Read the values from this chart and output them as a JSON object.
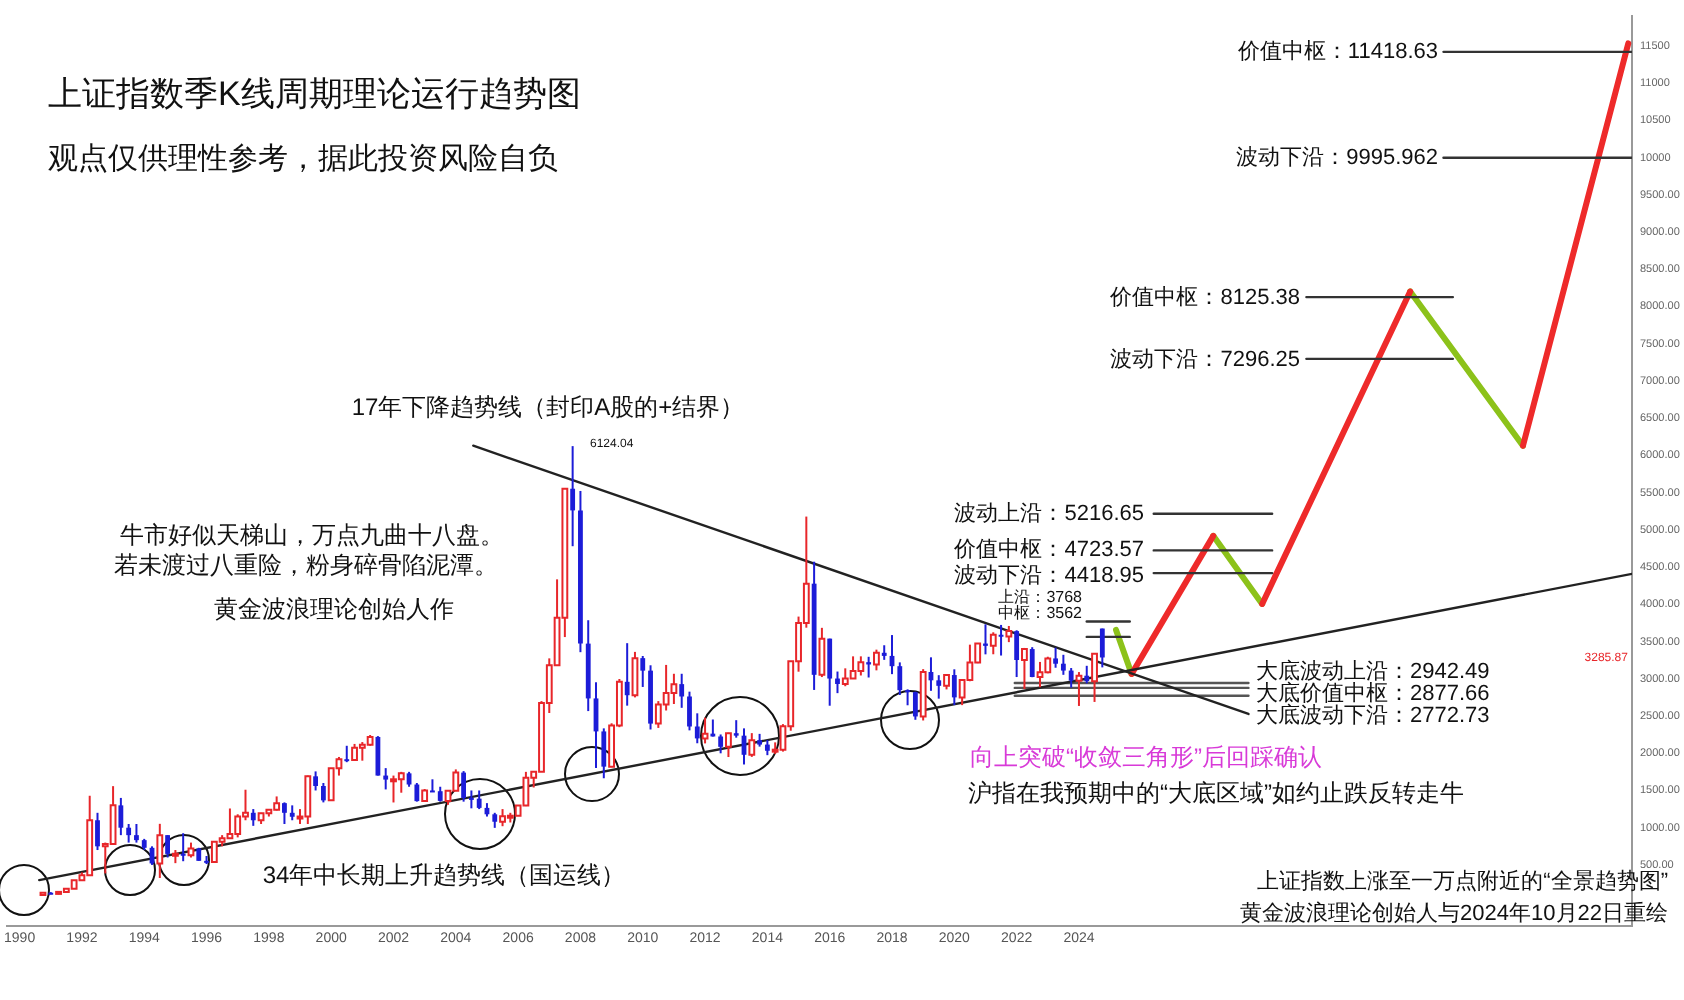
{
  "chart_data": {
    "type": "candlestick",
    "title": "上证指数季K线周期理论运行趋势图",
    "subtitle": "观点仅供理性参考，据此投资风险自负",
    "x": [
      1990.75,
      1991,
      1991.25,
      1991.5,
      1991.75,
      1992,
      1992.25,
      1992.5,
      1992.75,
      1993,
      1993.25,
      1993.5,
      1993.75,
      1994,
      1994.25,
      1994.5,
      1994.75,
      1995,
      1995.25,
      1995.5,
      1995.75,
      1996,
      1996.25,
      1996.5,
      1996.75,
      1997,
      1997.25,
      1997.5,
      1997.75,
      1998,
      1998.25,
      1998.5,
      1998.75,
      1999,
      1999.25,
      1999.5,
      1999.75,
      2000,
      2000.25,
      2000.5,
      2000.75,
      2001,
      2001.25,
      2001.5,
      2001.75,
      2002,
      2002.25,
      2002.5,
      2002.75,
      2003,
      2003.25,
      2003.5,
      2003.75,
      2004,
      2004.25,
      2004.5,
      2004.75,
      2005,
      2005.25,
      2005.5,
      2005.75,
      2006,
      2006.25,
      2006.5,
      2006.75,
      2007,
      2007.25,
      2007.5,
      2007.75,
      2008,
      2008.25,
      2008.5,
      2008.75,
      2009,
      2009.25,
      2009.5,
      2009.75,
      2010,
      2010.25,
      2010.5,
      2010.75,
      2011,
      2011.25,
      2011.5,
      2011.75,
      2012,
      2012.25,
      2012.5,
      2012.75,
      2013,
      2013.25,
      2013.5,
      2013.75,
      2014,
      2014.25,
      2014.5,
      2014.75,
      2015,
      2015.25,
      2015.5,
      2015.75,
      2016,
      2016.25,
      2016.5,
      2016.75,
      2017,
      2017.25,
      2017.5,
      2017.75,
      2018,
      2018.25,
      2018.5,
      2018.75,
      2019,
      2019.25,
      2019.5,
      2019.75,
      2020,
      2020.25,
      2020.5,
      2020.75,
      2021,
      2021.25,
      2021.5,
      2021.75,
      2022,
      2022.25,
      2022.5,
      2022.75,
      2023,
      2023.25,
      2023.5,
      2023.75,
      2024,
      2024.25,
      2024.5,
      2024.75
    ],
    "ohlc": [
      [
        96,
        127,
        95,
        127
      ],
      [
        127,
        135,
        105,
        120
      ],
      [
        120,
        140,
        105,
        138
      ],
      [
        138,
        180,
        135,
        180
      ],
      [
        180,
        293,
        180,
        293
      ],
      [
        293,
        400,
        290,
        360
      ],
      [
        360,
        1429,
        360,
        1100
      ],
      [
        1100,
        1200,
        700,
        750
      ],
      [
        750,
        800,
        386,
        780
      ],
      [
        780,
        1558,
        770,
        1300
      ],
      [
        1300,
        1400,
        900,
        1000
      ],
      [
        1000,
        1050,
        800,
        900
      ],
      [
        900,
        1050,
        800,
        833
      ],
      [
        833,
        850,
        700,
        730
      ],
      [
        730,
        750,
        500,
        520
      ],
      [
        520,
        1052,
        325,
        900
      ],
      [
        900,
        900,
        600,
        648
      ],
      [
        648,
        700,
        524,
        650
      ],
      [
        650,
        926,
        550,
        630
      ],
      [
        630,
        800,
        600,
        720
      ],
      [
        720,
        730,
        555,
        555
      ],
      [
        555,
        620,
        512,
        540
      ],
      [
        540,
        820,
        530,
        810
      ],
      [
        810,
        900,
        750,
        860
      ],
      [
        860,
        1258,
        850,
        917
      ],
      [
        917,
        1180,
        870,
        1150
      ],
      [
        1150,
        1510,
        1100,
        1200
      ],
      [
        1200,
        1250,
        1025,
        1100
      ],
      [
        1100,
        1200,
        1050,
        1194
      ],
      [
        1194,
        1250,
        1150,
        1240
      ],
      [
        1240,
        1420,
        1230,
        1330
      ],
      [
        1330,
        1340,
        1050,
        1200
      ],
      [
        1200,
        1300,
        1100,
        1147
      ],
      [
        1147,
        1250,
        1050,
        1150
      ],
      [
        1150,
        1700,
        1050,
        1690
      ],
      [
        1690,
        1756,
        1500,
        1560
      ],
      [
        1560,
        1600,
        1340,
        1367
      ],
      [
        1367,
        1800,
        1360,
        1800
      ],
      [
        1800,
        1950,
        1700,
        1920
      ],
      [
        1920,
        2100,
        1880,
        1910
      ],
      [
        1910,
        2125,
        1900,
        2073
      ],
      [
        2073,
        2150,
        1900,
        2115
      ],
      [
        2115,
        2245,
        2100,
        2219
      ],
      [
        2219,
        2230,
        1700,
        1700
      ],
      [
        1700,
        1800,
        1514,
        1646
      ],
      [
        1646,
        1700,
        1339,
        1650
      ],
      [
        1650,
        1750,
        1470,
        1730
      ],
      [
        1730,
        1750,
        1550,
        1580
      ],
      [
        1580,
        1600,
        1350,
        1357
      ],
      [
        1357,
        1520,
        1350,
        1500
      ],
      [
        1500,
        1650,
        1480,
        1490
      ],
      [
        1490,
        1550,
        1350,
        1360
      ],
      [
        1360,
        1500,
        1307,
        1497
      ],
      [
        1497,
        1783,
        1490,
        1740
      ],
      [
        1740,
        1760,
        1350,
        1400
      ],
      [
        1400,
        1500,
        1260,
        1390
      ],
      [
        1390,
        1500,
        1250,
        1266
      ],
      [
        1266,
        1330,
        1150,
        1180
      ],
      [
        1180,
        1200,
        998,
        1080
      ],
      [
        1080,
        1250,
        1020,
        1155
      ],
      [
        1155,
        1200,
        1070,
        1161
      ],
      [
        1161,
        1300,
        1160,
        1298
      ],
      [
        1298,
        1750,
        1290,
        1672
      ],
      [
        1672,
        1760,
        1540,
        1752
      ],
      [
        1752,
        2700,
        1750,
        2675
      ],
      [
        2675,
        3274,
        2540,
        3183
      ],
      [
        3183,
        4335,
        3180,
        3820
      ],
      [
        3820,
        5552,
        3560,
        5552
      ],
      [
        5552,
        6124.04,
        4780,
        5261
      ],
      [
        5261,
        5522,
        3357,
        3472
      ],
      [
        3472,
        3786,
        2566,
        2736
      ],
      [
        2736,
        2953,
        1802,
        2293
      ],
      [
        2293,
        2334,
        1664,
        1820
      ],
      [
        1820,
        2402,
        1814,
        2373
      ],
      [
        2373,
        2997,
        2350,
        2959
      ],
      [
        2959,
        3478,
        2639,
        2779
      ],
      [
        2779,
        3361,
        2750,
        3277
      ],
      [
        3277,
        3306,
        2890,
        3109
      ],
      [
        3109,
        3181,
        2319,
        2398
      ],
      [
        2398,
        2700,
        2340,
        2655
      ],
      [
        2655,
        3186,
        2574,
        2808
      ],
      [
        2808,
        3067,
        2661,
        2928
      ],
      [
        2928,
        3067,
        2610,
        2762
      ],
      [
        2762,
        2827,
        2307,
        2359
      ],
      [
        2359,
        2536,
        2134,
        2199
      ],
      [
        2199,
        2478,
        2132,
        2263
      ],
      [
        2263,
        2453,
        2224,
        2225
      ],
      [
        2225,
        2252,
        1999,
        2086
      ],
      [
        2086,
        2276,
        1949,
        2269
      ],
      [
        2269,
        2444,
        2209,
        2236
      ],
      [
        2236,
        2334,
        1849,
        1979
      ],
      [
        1979,
        2270,
        1951,
        2175
      ],
      [
        2175,
        2260,
        2089,
        2116
      ],
      [
        2116,
        2177,
        1974,
        2033
      ],
      [
        2033,
        2146,
        1991,
        2048
      ],
      [
        2048,
        2391,
        2022,
        2364
      ],
      [
        2364,
        3239,
        2302,
        3235
      ],
      [
        3235,
        3835,
        3095,
        3748
      ],
      [
        3748,
        5178,
        3686,
        4277
      ],
      [
        4277,
        4572,
        2850,
        3053
      ],
      [
        3053,
        3684,
        3023,
        3539
      ],
      [
        3539,
        3539,
        2638,
        3003
      ],
      [
        3003,
        3097,
        2807,
        2930
      ],
      [
        2930,
        3140,
        2900,
        3005
      ],
      [
        3005,
        3301,
        3000,
        3104
      ],
      [
        3104,
        3301,
        3044,
        3223
      ],
      [
        3223,
        3295,
        3017,
        3192
      ],
      [
        3192,
        3391,
        3113,
        3349
      ],
      [
        3349,
        3450,
        3254,
        3307
      ],
      [
        3307,
        3587,
        3062,
        3169
      ],
      [
        3169,
        3220,
        2782,
        2847
      ],
      [
        2847,
        2858,
        2644,
        2821
      ],
      [
        2821,
        2828,
        2449,
        2494
      ],
      [
        2494,
        3129,
        2440,
        3091
      ],
      [
        3091,
        3288,
        2838,
        2979
      ],
      [
        2979,
        3048,
        2733,
        2905
      ],
      [
        2905,
        3056,
        2857,
        3050
      ],
      [
        3050,
        3127,
        2647,
        2750
      ],
      [
        2750,
        2985,
        2646,
        2985
      ],
      [
        2985,
        3458,
        2967,
        3218
      ],
      [
        3218,
        3474,
        3209,
        3473
      ],
      [
        3473,
        3731,
        3328,
        3442
      ],
      [
        3442,
        3624,
        3329,
        3591
      ],
      [
        3591,
        3723,
        3312,
        3568
      ],
      [
        3568,
        3709,
        3492,
        3640
      ],
      [
        3640,
        3651,
        3023,
        3252
      ],
      [
        3252,
        3414,
        2863,
        3399
      ],
      [
        3399,
        3424,
        3021,
        3024
      ],
      [
        3024,
        3226,
        2886,
        3089
      ],
      [
        3089,
        3296,
        3073,
        3273
      ],
      [
        3273,
        3418,
        3148,
        3202
      ],
      [
        3202,
        3322,
        3053,
        3110
      ],
      [
        3110,
        3144,
        2882,
        2975
      ],
      [
        2975,
        3090,
        2635,
        3041
      ],
      [
        3041,
        3174,
        2938,
        2967
      ],
      [
        2967,
        3336,
        2689,
        3336
      ],
      [
        3674.4,
        3674.4,
        3152.82,
        3285.87
      ]
    ],
    "series": [
      {
        "type": "line",
        "color": "#222222",
        "x": [
          2004.56,
          2029.44
        ],
        "values": [
          6130,
          2527
        ]
      },
      {
        "type": "line",
        "color": "#222222",
        "x": [
          1990.63,
          2041.75
        ],
        "values": [
          296,
          4409
        ]
      },
      {
        "type": "line",
        "color": "#333333",
        "x": [
          2024.25,
          2025.63
        ],
        "values": [
          3768,
          3768
        ]
      },
      {
        "type": "line",
        "color": "#333333",
        "x": [
          2024.25,
          2025.63
        ],
        "values": [
          3562,
          3562
        ]
      },
      {
        "type": "line",
        "color": "#333333",
        "x": [
          2026.4,
          2030.2
        ],
        "values": [
          5216.65,
          5216.65
        ]
      },
      {
        "type": "line",
        "color": "#333333",
        "x": [
          2026.4,
          2030.2
        ],
        "values": [
          4723.57,
          4723.57
        ]
      },
      {
        "type": "line",
        "color": "#333333",
        "x": [
          2026.4,
          2030.2
        ],
        "values": [
          4418.95,
          4418.95
        ]
      },
      {
        "type": "line",
        "color": "#555555",
        "x": [
          2021.94,
          2029.44
        ],
        "values": [
          2942.49,
          2942.49
        ]
      },
      {
        "type": "line",
        "color": "#555555",
        "x": [
          2021.94,
          2029.44
        ],
        "values": [
          2877.66,
          2877.66
        ]
      },
      {
        "type": "line",
        "color": "#555555",
        "x": [
          2021.94,
          2029.44
        ],
        "values": [
          2772.73,
          2772.73
        ]
      },
      {
        "type": "line",
        "color": "#333333",
        "x": [
          2031.3,
          2036
        ],
        "values": [
          8125.38,
          8125.38
        ]
      },
      {
        "type": "line",
        "color": "#333333",
        "x": [
          2031.3,
          2036
        ],
        "values": [
          7296.25,
          7296.25
        ]
      },
      {
        "type": "line",
        "color": "#333333",
        "x": [
          2035.7,
          2041.75
        ],
        "values": [
          11418.63,
          11418.63
        ]
      },
      {
        "type": "line",
        "color": "#333333",
        "x": [
          2035.7,
          2041.75
        ],
        "values": [
          9995.962,
          9995.962
        ]
      },
      {
        "type": "line",
        "color": "#ee2a2a",
        "x": [
          2025.69,
          2028.31,
          2029,
          2029.88,
          2034.63,
          2036,
          2038.25,
          2041.63
        ],
        "values": [
          3065,
          4919,
          null,
          4005,
          8200,
          null,
          6129,
          11532
        ]
      },
      {
        "type": "line",
        "color": "#8cc21a",
        "x": [
          2025.19,
          2025.69,
          2027,
          2028.31,
          2029.88,
          2032,
          2034.63,
          2038.25
        ],
        "values": [
          3656,
          3065,
          null,
          4919,
          4005,
          null,
          8200,
          6129
        ]
      }
    ],
    "annotations": [
      "牛市好似天梯山，万点九曲十八盘。",
      "若未渡过八重险，粉身碎骨陷泥潭。",
      "黄金波浪理论创始人作",
      "向上突破“收敛三角形”后回踩确认",
      "沪指在我预期中的“大底区域”如约止跌反转走牛",
      "上证指数上涨至一万点附近的“全景趋势图”",
      "黄金波浪理论创始人与2024年10月22日重绘",
      "17年下降趋势线（封印A股的+结界）",
      "34年中长期上升趋势线（国运线）",
      "6124.04",
      "上沿：3768",
      "中枢：3562",
      "波动上沿：5216.65",
      "价值中枢：4723.57",
      "波动下沿：4418.95",
      "大底波动上沿：2942.49",
      "大底价值中枢：2877.66",
      "大底波动下沿：2772.73",
      "价值中枢：8125.38",
      "波动下沿：7296.25",
      "价值中枢：11418.63",
      "波动下沿：9995.962",
      "3285.87"
    ],
    "xlim": [
      1989.6,
      2041.75
    ],
    "xticks": [
      1990,
      1992,
      1994,
      1996,
      1998,
      2000,
      2002,
      2004,
      2006,
      2008,
      2010,
      2012,
      2014,
      2016,
      2018,
      2020,
      2022,
      2024
    ],
    "ylim": [
      -320,
      11900
    ],
    "yticks": [
      {
        "value": 500,
        "label": "500.00"
      },
      {
        "value": 1000,
        "label": "1000.00"
      },
      {
        "value": 1500,
        "label": "1500.00"
      },
      {
        "value": 2000,
        "label": "2000.00"
      },
      {
        "value": 2500,
        "label": "2500.00"
      },
      {
        "value": 3000,
        "label": "3000.00"
      },
      {
        "value": 3500,
        "label": "3500.00"
      },
      {
        "value": 4000,
        "label": "4000.00"
      },
      {
        "value": 4500,
        "label": "4500.00"
      },
      {
        "value": 5000,
        "label": "5000.00"
      },
      {
        "value": 5500,
        "label": "5500.00"
      },
      {
        "value": 6000,
        "label": "6000.00"
      },
      {
        "value": 6500,
        "label": "6500.00"
      },
      {
        "value": 7000,
        "label": "7000.00"
      },
      {
        "value": 7500,
        "label": "7500.00"
      },
      {
        "value": 8000,
        "label": "8000.00"
      },
      {
        "value": 8500,
        "label": "8500.00"
      },
      {
        "value": 9000,
        "label": "9000.00"
      },
      {
        "value": 9500,
        "label": "9500.00"
      },
      10000,
      10500,
      11000,
      11500
    ],
    "grid": false,
    "legend": false
  }
}
